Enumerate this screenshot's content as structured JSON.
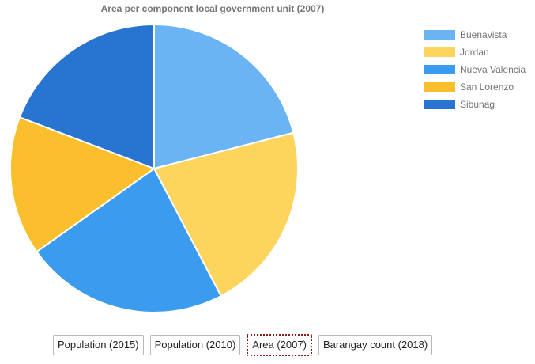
{
  "chart_data": {
    "type": "pie",
    "title": "Area per component local government unit (2007)",
    "categories": [
      "Buenavista",
      "Jordan",
      "Nueva Valencia",
      "San Lorenzo",
      "Sibunag"
    ],
    "values": [
      21.0,
      21.3,
      22.9,
      15.6,
      19.2
    ],
    "colors": [
      "#6ab4f4",
      "#fdd55d",
      "#3a9bef",
      "#fbbf2d",
      "#2775d1"
    ],
    "legend_position": "top-right",
    "start_angle_deg": 0,
    "direction": "clockwise"
  },
  "buttons": [
    {
      "label": "Population (2015)",
      "active": false
    },
    {
      "label": "Population (2010)",
      "active": false
    },
    {
      "label": "Area (2007)",
      "active": true
    },
    {
      "label": "Barangay count (2018)",
      "active": false
    }
  ]
}
